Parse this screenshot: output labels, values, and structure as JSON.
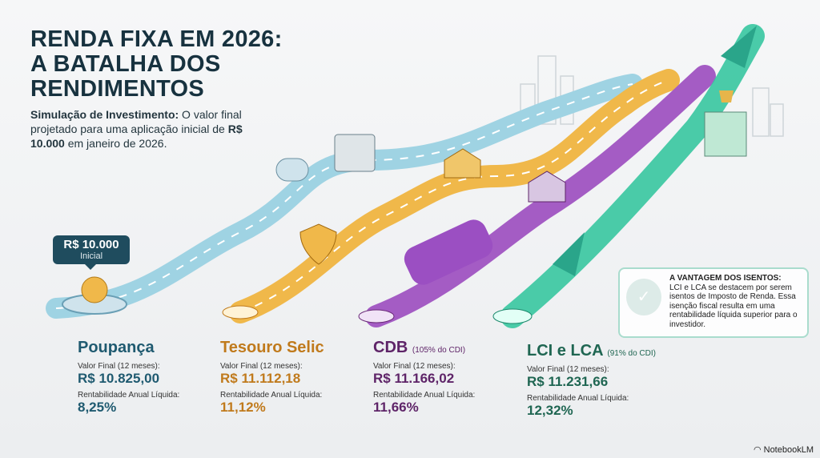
{
  "title": [
    "RENDA FIXA EM 2026:",
    "A BATALHA DOS",
    "RENDIMENTOS"
  ],
  "subtitle": {
    "bold1": "Simulação de Investimento:",
    "text1": " O valor final projetado para uma aplicação inicial de ",
    "bold2": "R$ 10.000",
    "text2": " em janeiro de 2026."
  },
  "start": {
    "value": "R$ 10.000",
    "label": "Inicial"
  },
  "investments": [
    {
      "name": "Poupança",
      "note": "",
      "final_label": "Valor Final (12 meses):",
      "final": "R$ 10.825,00",
      "rent_label": "Rentabilidade Anual Líquida:",
      "rent": "8,25%",
      "color": "#1f5a70"
    },
    {
      "name": "Tesouro Selic",
      "note": "",
      "final_label": "Valor Final (12 meses):",
      "final": "R$ 11.112,18",
      "rent_label": "Rentabilidade Anual Líquida:",
      "rent": "11,12%",
      "color": "#c07a1c"
    },
    {
      "name": "CDB",
      "note": "(105% do CDI)",
      "final_label": "Valor Final (12 meses):",
      "final": "R$ 11.166,02",
      "rent_label": "Rentabilidade Anual Líquida:",
      "rent": "11,66%",
      "color": "#5e2468"
    },
    {
      "name": "LCI e LCA",
      "note": "(91% do CDI)",
      "final_label": "Valor Final (12 meses):",
      "final": "R$ 11.231,66",
      "rent_label": "Rentabilidade Anual Líquida:",
      "rent": "12,32%",
      "color": "#1f6652"
    }
  ],
  "callout": {
    "title": "A VANTAGEM DOS ISENTOS:",
    "text": "LCI e LCA se destacem por serem isentos de Imposto de Renda. Essa isenção fiscal resulta em uma rentabilidade líquida superior para o investidor."
  },
  "brand": "NotebookLM"
}
